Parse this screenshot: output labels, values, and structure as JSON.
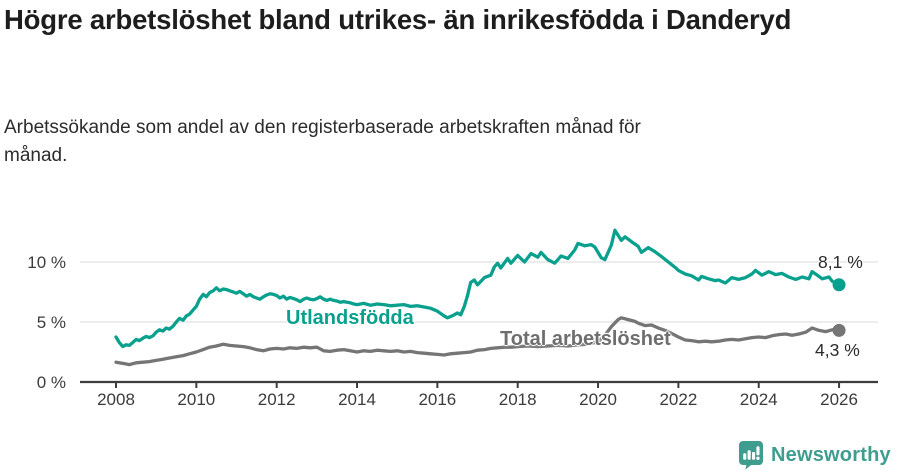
{
  "header": {
    "title": "Högre arbetslöshet bland utrikes- än inrikesfödda i Danderyd",
    "subtitle": "Arbetssökande som andel av den registerbaserade arbetskraften månad för månad."
  },
  "chart_data": {
    "type": "line",
    "title": "Högre arbetslöshet bland utrikes- än inrikesfödda i Danderyd",
    "subtitle": "Arbetssökande som andel av den registerbaserade arbetskraften månad för månad.",
    "xlabel": "",
    "ylabel": "",
    "xlim": [
      2007.9,
      2026.6
    ],
    "ylim": [
      0,
      13
    ],
    "grid": "horizontal",
    "legend_position": "inline-labels",
    "x_ticks": [
      "2008",
      "2010",
      "2012",
      "2014",
      "2016",
      "2018",
      "2020",
      "2022",
      "2024",
      "2026"
    ],
    "y_ticks": [
      {
        "value": 0,
        "label": "0 %"
      },
      {
        "value": 5,
        "label": "5 %"
      },
      {
        "value": 10,
        "label": "10 %"
      }
    ],
    "colors": {
      "grid": "#e1e1e1",
      "axis": "#3d3d3d",
      "tick_text": "#3b3b3b",
      "end_label_text": "#2b2b2b"
    },
    "series": [
      {
        "name": "Utlandsfödda",
        "color": "#0aa08e",
        "end_label": "8,1 %",
        "end_value": 8.1,
        "points": [
          [
            2008.0,
            3.75
          ],
          [
            2008.08,
            3.3
          ],
          [
            2008.17,
            2.95
          ],
          [
            2008.25,
            3.1
          ],
          [
            2008.33,
            3.05
          ],
          [
            2008.42,
            3.3
          ],
          [
            2008.5,
            3.55
          ],
          [
            2008.58,
            3.45
          ],
          [
            2008.67,
            3.65
          ],
          [
            2008.75,
            3.8
          ],
          [
            2008.83,
            3.7
          ],
          [
            2008.92,
            3.85
          ],
          [
            2009.0,
            4.15
          ],
          [
            2009.08,
            4.35
          ],
          [
            2009.17,
            4.25
          ],
          [
            2009.25,
            4.5
          ],
          [
            2009.33,
            4.4
          ],
          [
            2009.42,
            4.65
          ],
          [
            2009.5,
            5.0
          ],
          [
            2009.58,
            5.3
          ],
          [
            2009.67,
            5.15
          ],
          [
            2009.75,
            5.5
          ],
          [
            2009.83,
            5.65
          ],
          [
            2009.92,
            6.0
          ],
          [
            2010.0,
            6.3
          ],
          [
            2010.08,
            6.9
          ],
          [
            2010.17,
            7.3
          ],
          [
            2010.25,
            7.1
          ],
          [
            2010.33,
            7.45
          ],
          [
            2010.42,
            7.6
          ],
          [
            2010.5,
            7.85
          ],
          [
            2010.58,
            7.6
          ],
          [
            2010.67,
            7.75
          ],
          [
            2010.75,
            7.7
          ],
          [
            2010.83,
            7.6
          ],
          [
            2010.92,
            7.5
          ],
          [
            2011.0,
            7.4
          ],
          [
            2011.08,
            7.55
          ],
          [
            2011.17,
            7.35
          ],
          [
            2011.25,
            7.15
          ],
          [
            2011.33,
            7.3
          ],
          [
            2011.42,
            7.1
          ],
          [
            2011.5,
            7.0
          ],
          [
            2011.58,
            6.9
          ],
          [
            2011.67,
            7.1
          ],
          [
            2011.75,
            7.25
          ],
          [
            2011.83,
            7.35
          ],
          [
            2011.92,
            7.3
          ],
          [
            2012.0,
            7.2
          ],
          [
            2012.08,
            7.0
          ],
          [
            2012.17,
            7.15
          ],
          [
            2012.25,
            6.9
          ],
          [
            2012.33,
            7.05
          ],
          [
            2012.42,
            6.95
          ],
          [
            2012.5,
            6.85
          ],
          [
            2012.58,
            6.7
          ],
          [
            2012.67,
            6.9
          ],
          [
            2012.75,
            7.0
          ],
          [
            2012.83,
            6.9
          ],
          [
            2012.92,
            6.85
          ],
          [
            2013.0,
            6.95
          ],
          [
            2013.08,
            7.1
          ],
          [
            2013.17,
            6.9
          ],
          [
            2013.25,
            6.8
          ],
          [
            2013.33,
            6.9
          ],
          [
            2013.42,
            6.8
          ],
          [
            2013.5,
            6.75
          ],
          [
            2013.58,
            6.65
          ],
          [
            2013.67,
            6.7
          ],
          [
            2013.75,
            6.65
          ],
          [
            2013.83,
            6.6
          ],
          [
            2013.92,
            6.5
          ],
          [
            2014.0,
            6.45
          ],
          [
            2014.17,
            6.55
          ],
          [
            2014.33,
            6.4
          ],
          [
            2014.5,
            6.5
          ],
          [
            2014.67,
            6.45
          ],
          [
            2014.83,
            6.35
          ],
          [
            2015.0,
            6.4
          ],
          [
            2015.17,
            6.45
          ],
          [
            2015.33,
            6.3
          ],
          [
            2015.5,
            6.35
          ],
          [
            2015.67,
            6.25
          ],
          [
            2015.83,
            6.15
          ],
          [
            2016.0,
            5.9
          ],
          [
            2016.17,
            5.5
          ],
          [
            2016.25,
            5.35
          ],
          [
            2016.33,
            5.45
          ],
          [
            2016.42,
            5.6
          ],
          [
            2016.5,
            5.75
          ],
          [
            2016.58,
            5.6
          ],
          [
            2016.67,
            6.3
          ],
          [
            2016.75,
            7.2
          ],
          [
            2016.83,
            8.3
          ],
          [
            2016.92,
            8.5
          ],
          [
            2017.0,
            8.1
          ],
          [
            2017.17,
            8.7
          ],
          [
            2017.33,
            8.9
          ],
          [
            2017.42,
            9.6
          ],
          [
            2017.5,
            9.9
          ],
          [
            2017.58,
            9.5
          ],
          [
            2017.75,
            10.3
          ],
          [
            2017.83,
            9.9
          ],
          [
            2018.0,
            10.55
          ],
          [
            2018.17,
            10.0
          ],
          [
            2018.33,
            10.7
          ],
          [
            2018.5,
            10.4
          ],
          [
            2018.58,
            10.8
          ],
          [
            2018.75,
            10.2
          ],
          [
            2018.92,
            9.9
          ],
          [
            2019.08,
            10.5
          ],
          [
            2019.25,
            10.3
          ],
          [
            2019.42,
            11.0
          ],
          [
            2019.5,
            11.55
          ],
          [
            2019.67,
            11.35
          ],
          [
            2019.83,
            11.45
          ],
          [
            2019.92,
            11.25
          ],
          [
            2020.08,
            10.35
          ],
          [
            2020.17,
            10.2
          ],
          [
            2020.33,
            11.4
          ],
          [
            2020.42,
            12.65
          ],
          [
            2020.58,
            11.8
          ],
          [
            2020.67,
            12.1
          ],
          [
            2020.83,
            11.7
          ],
          [
            2021.0,
            11.3
          ],
          [
            2021.08,
            10.8
          ],
          [
            2021.25,
            11.2
          ],
          [
            2021.42,
            10.85
          ],
          [
            2021.58,
            10.45
          ],
          [
            2021.75,
            10.0
          ],
          [
            2021.92,
            9.55
          ],
          [
            2022.0,
            9.3
          ],
          [
            2022.17,
            9.0
          ],
          [
            2022.33,
            8.85
          ],
          [
            2022.5,
            8.5
          ],
          [
            2022.58,
            8.8
          ],
          [
            2022.75,
            8.6
          ],
          [
            2022.92,
            8.45
          ],
          [
            2023.0,
            8.5
          ],
          [
            2023.17,
            8.25
          ],
          [
            2023.33,
            8.7
          ],
          [
            2023.5,
            8.55
          ],
          [
            2023.67,
            8.7
          ],
          [
            2023.83,
            9.0
          ],
          [
            2023.92,
            9.3
          ],
          [
            2024.08,
            8.9
          ],
          [
            2024.25,
            9.2
          ],
          [
            2024.42,
            8.95
          ],
          [
            2024.58,
            9.05
          ],
          [
            2024.75,
            8.75
          ],
          [
            2024.92,
            8.55
          ],
          [
            2025.08,
            8.75
          ],
          [
            2025.25,
            8.6
          ],
          [
            2025.33,
            9.2
          ],
          [
            2025.5,
            8.8
          ],
          [
            2025.58,
            8.6
          ],
          [
            2025.75,
            8.75
          ],
          [
            2025.83,
            8.4
          ],
          [
            2026.0,
            8.1
          ]
        ]
      },
      {
        "name": "Total arbetslöshet",
        "color": "#757575",
        "label_color": "#6e6e6e",
        "end_label": "4,3 %",
        "end_value": 4.3,
        "points": [
          [
            2008.0,
            1.65
          ],
          [
            2008.17,
            1.55
          ],
          [
            2008.33,
            1.45
          ],
          [
            2008.5,
            1.6
          ],
          [
            2008.67,
            1.65
          ],
          [
            2008.83,
            1.7
          ],
          [
            2009.0,
            1.8
          ],
          [
            2009.17,
            1.9
          ],
          [
            2009.33,
            2.0
          ],
          [
            2009.5,
            2.1
          ],
          [
            2009.67,
            2.2
          ],
          [
            2009.83,
            2.35
          ],
          [
            2010.0,
            2.5
          ],
          [
            2010.17,
            2.7
          ],
          [
            2010.33,
            2.9
          ],
          [
            2010.5,
            3.0
          ],
          [
            2010.67,
            3.15
          ],
          [
            2010.83,
            3.05
          ],
          [
            2011.0,
            3.0
          ],
          [
            2011.17,
            2.95
          ],
          [
            2011.33,
            2.85
          ],
          [
            2011.5,
            2.7
          ],
          [
            2011.67,
            2.6
          ],
          [
            2011.83,
            2.75
          ],
          [
            2012.0,
            2.8
          ],
          [
            2012.17,
            2.75
          ],
          [
            2012.33,
            2.85
          ],
          [
            2012.5,
            2.8
          ],
          [
            2012.67,
            2.9
          ],
          [
            2012.83,
            2.85
          ],
          [
            2013.0,
            2.9
          ],
          [
            2013.17,
            2.6
          ],
          [
            2013.33,
            2.55
          ],
          [
            2013.5,
            2.65
          ],
          [
            2013.67,
            2.7
          ],
          [
            2013.83,
            2.6
          ],
          [
            2014.0,
            2.5
          ],
          [
            2014.17,
            2.6
          ],
          [
            2014.33,
            2.55
          ],
          [
            2014.5,
            2.65
          ],
          [
            2014.67,
            2.6
          ],
          [
            2014.83,
            2.55
          ],
          [
            2015.0,
            2.6
          ],
          [
            2015.17,
            2.5
          ],
          [
            2015.33,
            2.55
          ],
          [
            2015.5,
            2.45
          ],
          [
            2015.67,
            2.4
          ],
          [
            2015.83,
            2.35
          ],
          [
            2016.0,
            2.3
          ],
          [
            2016.17,
            2.25
          ],
          [
            2016.33,
            2.35
          ],
          [
            2016.5,
            2.4
          ],
          [
            2016.67,
            2.45
          ],
          [
            2016.83,
            2.5
          ],
          [
            2017.0,
            2.65
          ],
          [
            2017.17,
            2.7
          ],
          [
            2017.33,
            2.8
          ],
          [
            2017.5,
            2.85
          ],
          [
            2017.67,
            2.9
          ],
          [
            2017.83,
            2.9
          ],
          [
            2018.0,
            2.95
          ],
          [
            2018.25,
            3.0
          ],
          [
            2018.5,
            2.95
          ],
          [
            2018.75,
            3.0
          ],
          [
            2019.0,
            3.05
          ],
          [
            2019.25,
            3.0
          ],
          [
            2019.5,
            3.1
          ],
          [
            2019.75,
            3.15
          ],
          [
            2020.0,
            3.35
          ],
          [
            2020.17,
            3.9
          ],
          [
            2020.33,
            4.6
          ],
          [
            2020.5,
            5.2
          ],
          [
            2020.58,
            5.35
          ],
          [
            2020.75,
            5.2
          ],
          [
            2020.92,
            5.05
          ],
          [
            2021.0,
            4.9
          ],
          [
            2021.17,
            4.7
          ],
          [
            2021.33,
            4.75
          ],
          [
            2021.5,
            4.5
          ],
          [
            2021.67,
            4.3
          ],
          [
            2021.83,
            4.05
          ],
          [
            2022.0,
            3.75
          ],
          [
            2022.17,
            3.5
          ],
          [
            2022.33,
            3.45
          ],
          [
            2022.5,
            3.35
          ],
          [
            2022.67,
            3.4
          ],
          [
            2022.83,
            3.35
          ],
          [
            2023.0,
            3.4
          ],
          [
            2023.17,
            3.5
          ],
          [
            2023.33,
            3.55
          ],
          [
            2023.5,
            3.5
          ],
          [
            2023.67,
            3.6
          ],
          [
            2023.83,
            3.7
          ],
          [
            2024.0,
            3.75
          ],
          [
            2024.17,
            3.7
          ],
          [
            2024.33,
            3.85
          ],
          [
            2024.5,
            3.95
          ],
          [
            2024.67,
            4.0
          ],
          [
            2024.83,
            3.9
          ],
          [
            2025.0,
            4.0
          ],
          [
            2025.17,
            4.15
          ],
          [
            2025.33,
            4.5
          ],
          [
            2025.5,
            4.3
          ],
          [
            2025.67,
            4.2
          ],
          [
            2025.83,
            4.35
          ],
          [
            2026.0,
            4.3
          ]
        ]
      }
    ]
  },
  "logo": {
    "text": "Newsworthy",
    "color": "#3f9d8f"
  }
}
